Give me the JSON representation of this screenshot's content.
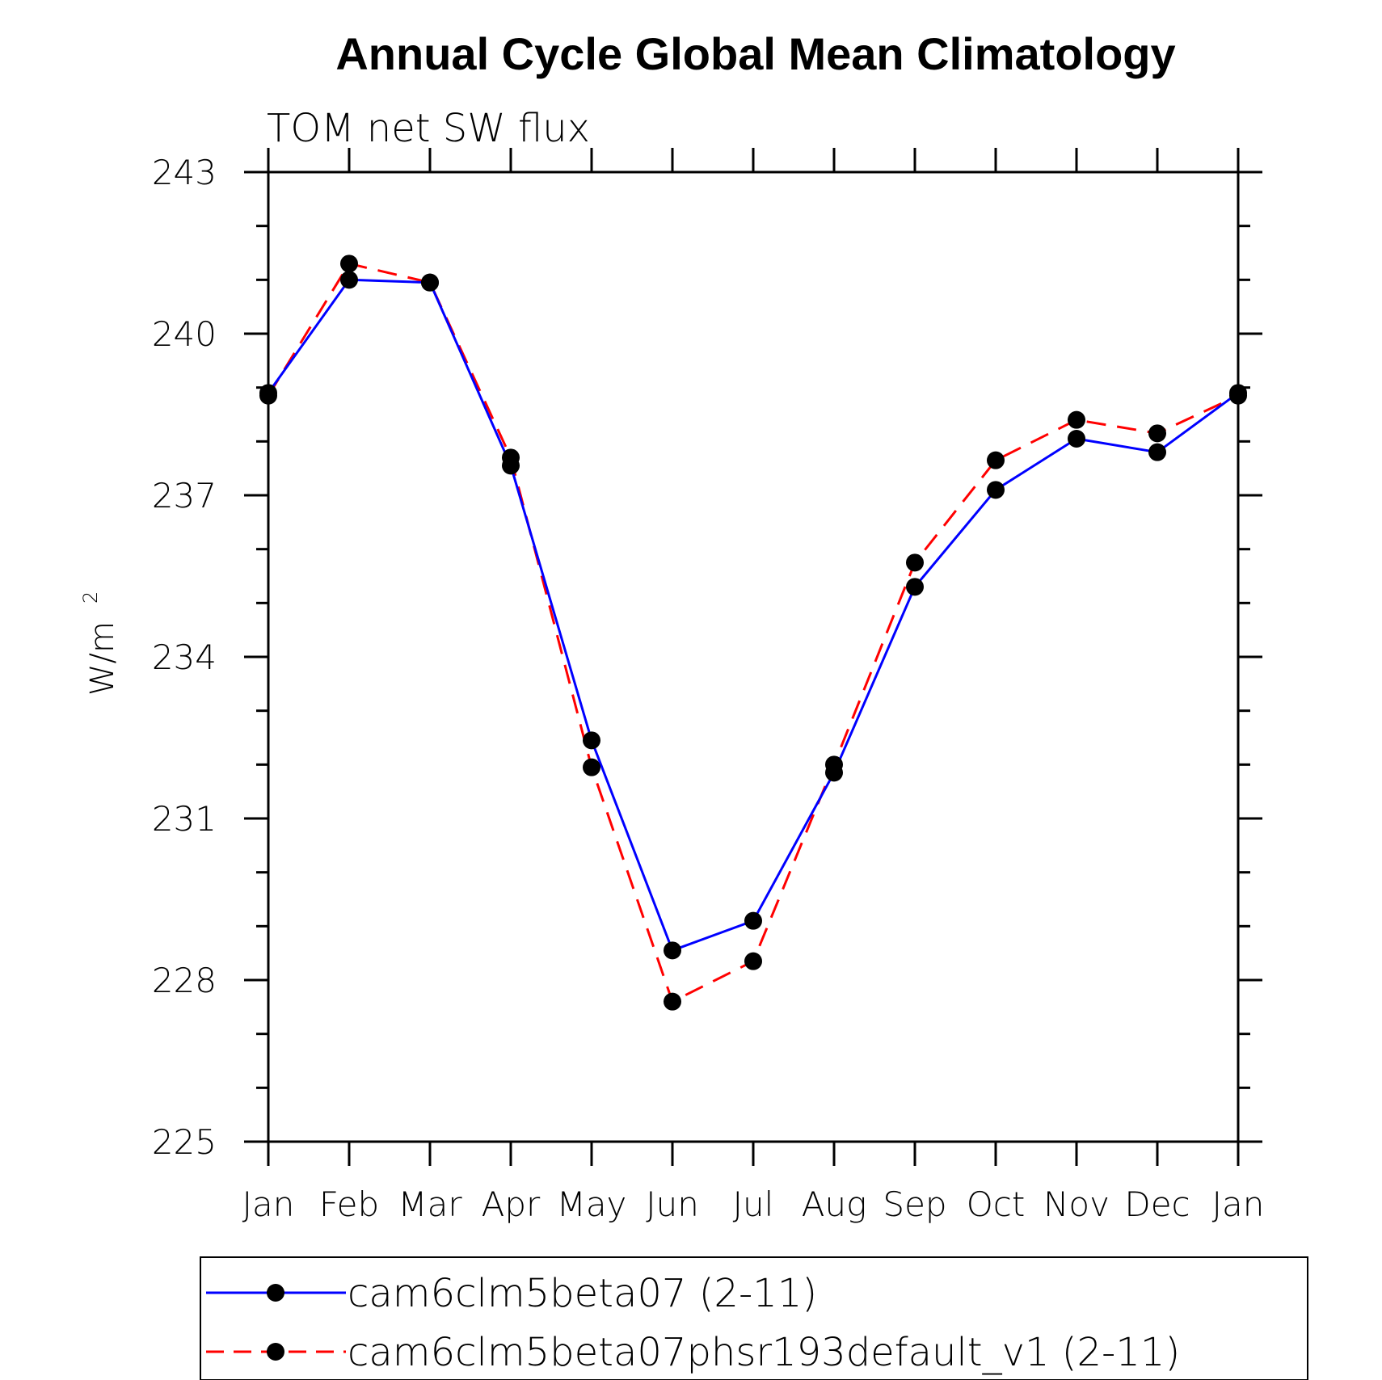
{
  "chart_data": {
    "type": "line",
    "title": "Annual Cycle Global Mean Climatology",
    "subtitle": "TOM net SW flux",
    "ylabel": "W/m",
    "ylabel_sup": "2",
    "xlabel": "",
    "categories": [
      "Jan",
      "Feb",
      "Mar",
      "Apr",
      "May",
      "Jun",
      "Jul",
      "Aug",
      "Sep",
      "Oct",
      "Nov",
      "Dec",
      "Jan"
    ],
    "ylim": [
      225,
      243
    ],
    "yticks": [
      225,
      228,
      231,
      234,
      237,
      240,
      243
    ],
    "grid": false,
    "legend_position": "bottom",
    "series": [
      {
        "name": "cam6clm5beta07 (2-11)",
        "color": "#0000ff",
        "dash": "solid",
        "marker": "filled-circle",
        "values": [
          238.9,
          241.0,
          240.95,
          237.55,
          232.45,
          228.55,
          229.1,
          231.85,
          235.3,
          237.1,
          238.05,
          237.8,
          238.9
        ]
      },
      {
        "name": "cam6clm5beta07phsr193default_v1 (2-11)",
        "color": "#ff0000",
        "dash": "dashed",
        "marker": "filled-circle",
        "values": [
          238.85,
          241.3,
          240.95,
          237.7,
          231.95,
          227.6,
          228.35,
          232.0,
          235.75,
          237.65,
          238.4,
          238.15,
          238.85
        ]
      }
    ]
  }
}
